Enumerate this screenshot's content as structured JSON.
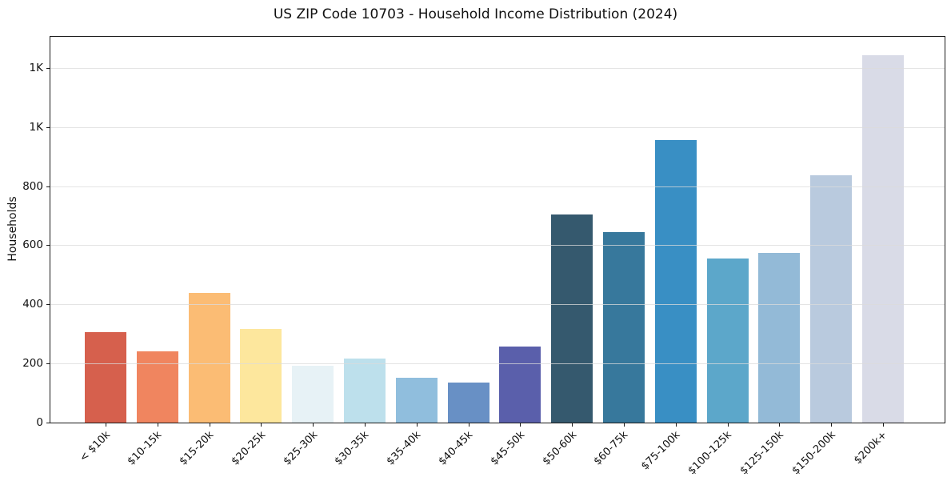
{
  "title": "US ZIP Code 10703 - Household Income Distribution (2024)",
  "chart_data": {
    "type": "bar",
    "title": "US ZIP Code 10703 - Household Income Distribution (2024)",
    "xlabel": "",
    "ylabel": "Households",
    "categories": [
      "< $10k",
      "$10-15k",
      "$15-20k",
      "$20-25k",
      "$25-30k",
      "$30-35k",
      "$35-40k",
      "$40-45k",
      "$45-50k",
      "$50-60k",
      "$60-75k",
      "$75-100k",
      "$100-125k",
      "$125-150k",
      "$150-200k",
      "$200k+"
    ],
    "values": [
      305,
      242,
      440,
      317,
      192,
      217,
      153,
      136,
      258,
      703,
      645,
      955,
      554,
      574,
      838,
      1242
    ],
    "bar_colors": [
      "#d6604d",
      "#f0855f",
      "#fbbc74",
      "#fde79d",
      "#e7f2f6",
      "#bde0ec",
      "#90bedd",
      "#6890c5",
      "#5a5fab",
      "#35596e",
      "#37789c",
      "#398fc4",
      "#5ca7ca",
      "#93bad7",
      "#b9cade",
      "#d9dbe7"
    ],
    "ylim": [
      0,
      1305
    ],
    "yticks": [
      {
        "value": 0,
        "label": "0"
      },
      {
        "value": 200,
        "label": "200"
      },
      {
        "value": 400,
        "label": "400"
      },
      {
        "value": 600,
        "label": "600"
      },
      {
        "value": 800,
        "label": "800"
      },
      {
        "value": 1000,
        "label": "1K"
      },
      {
        "value": 1200,
        "label": "1K"
      }
    ],
    "grid": "horizontal",
    "gridline_color": "#e6e6e6",
    "axis_color": "#1a1a1a",
    "background_color": "#ffffff",
    "legend": "none"
  }
}
